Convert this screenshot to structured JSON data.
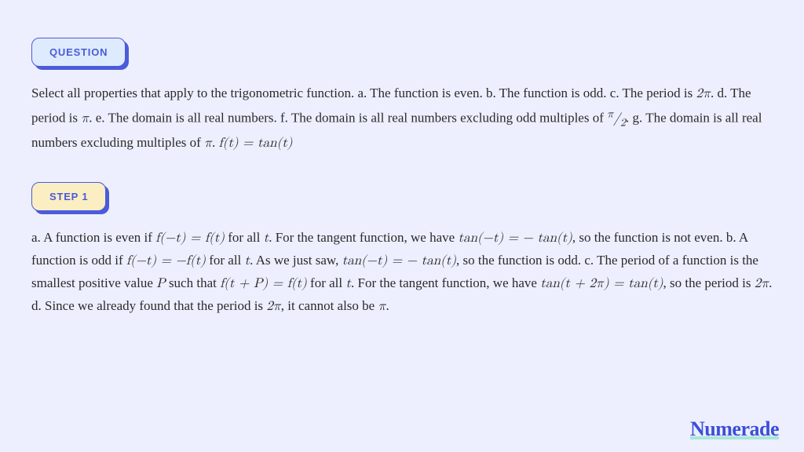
{
  "badges": {
    "question": "QUESTION",
    "step1": "STEP 1"
  },
  "question_html": "Select all properties that apply to the trigonometric function. a. The function is even. b. The function is odd. c. The period is <span class='math'>2π</span>. d. The period is <span class='math'>π</span>. e. The domain is all real numbers. f. The domain is all real numbers excluding odd multiples of <span class='math'><sup>π</sup>⁄<sub>2</sub></span>. g. The domain is all real numbers excluding multiples of <span class='math'>π</span>. <span class='math'>f(t) = tan(t)</span>",
  "step1_html": "a. A function is even if <span class='math'>f(−t) = f(t)</span> for all <span class='math'>t</span>. For the tangent function, we have <span class='math'>tan(−t) = − tan(t)</span>, so the function is not even. b. A function is odd if <span class='math'>f(−t) = −f(t)</span> for all <span class='math'>t</span>. As we just saw, <span class='math'>tan(−t) = − tan(t)</span>, so the function is odd. c. The period of a function is the smallest positive value <span class='math'>P</span> such that <span class='math'>f(t + P) = f(t)</span> for all <span class='math'>t</span>. For the tangent function, we have <span class='math'>tan(t + 2π) = tan(t)</span>, so the period is <span class='math'>2π</span>. d. Since we already found that the period is <span class='math'>2π</span>, it cannot also be <span class='math'>π</span>.",
  "brand": "Numerade",
  "colors": {
    "page_bg": "#edefff",
    "accent": "#4b5bd9",
    "q_fill": "#deebff",
    "s_fill": "#fbeec3",
    "text": "#2a2a2a",
    "brand": "#3b4fd8",
    "brand_underline": "#a8e6d8"
  },
  "typography": {
    "body_fontsize": 17,
    "body_lineheight": 1.65,
    "badge_fontsize": 13,
    "brand_fontsize": 26
  }
}
